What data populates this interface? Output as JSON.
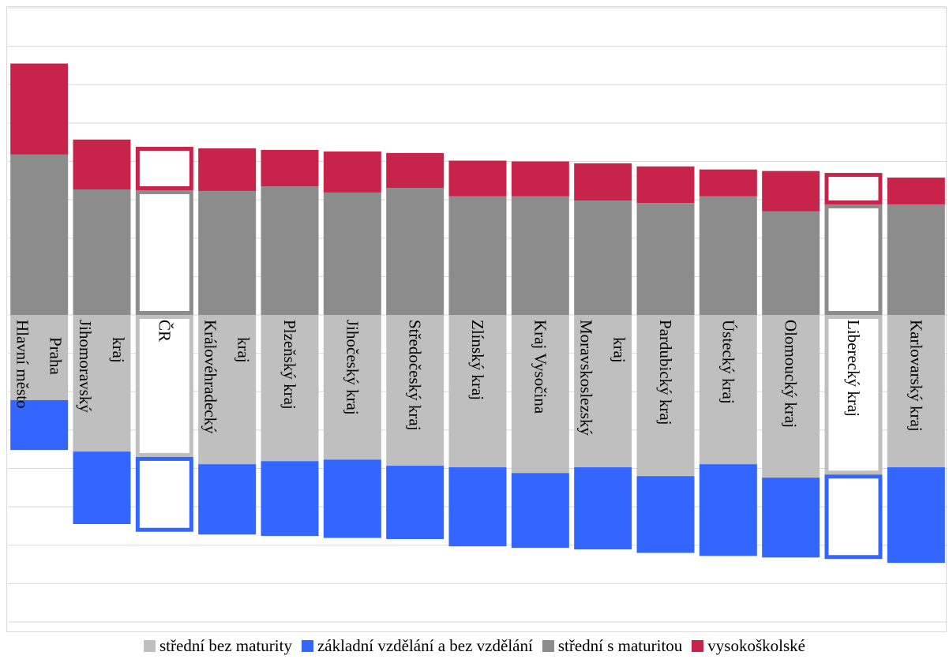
{
  "chart_data": {
    "type": "diverging-stacked-bar",
    "categories": [
      "Hlavní město\nPraha",
      "Jihomoravský\nkraj",
      "ČR",
      "Královéhradecký\nkraj",
      "Plzeňský kraj",
      "Jihočeský kraj",
      "Středočeský kraj",
      "Zlínský kraj",
      "Kraj Vysočina",
      "Moravskoslezský\nkraj",
      "Pardubický kraj",
      "Ústecký kraj",
      "Olomoucký kraj",
      "Liberecký kraj",
      "Karlovarský kraj"
    ],
    "series": [
      {
        "name": "střední bez maturity",
        "color": "#bfbfbf",
        "values": [
          -22.2,
          -35.6,
          -37.0,
          -38.9,
          -38.1,
          -37.7,
          -39.3,
          -39.7,
          -41.2,
          -39.7,
          -42.0,
          -38.9,
          -42.4,
          -41.6,
          -39.7
        ]
      },
      {
        "name": "základní vzdělání a bez vzdělání",
        "color": "#3366ff",
        "values": [
          -13.0,
          -18.9,
          -19.5,
          -18.3,
          -19.5,
          -20.4,
          -19.1,
          -20.6,
          -19.5,
          -21.4,
          -20.0,
          -23.9,
          -20.8,
          -22.0,
          -24.9
        ]
      },
      {
        "name": "střední s maturitou",
        "color": "#8c8c8c",
        "values": [
          41.8,
          32.7,
          32.5,
          32.3,
          33.5,
          31.9,
          33.1,
          30.9,
          30.9,
          29.8,
          29.2,
          30.9,
          27.0,
          28.8,
          28.8
        ]
      },
      {
        "name": "vysokoškolské",
        "color": "#c8234a",
        "values": [
          23.7,
          13.0,
          11.3,
          11.1,
          9.5,
          10.7,
          9.1,
          9.3,
          9.1,
          9.7,
          9.5,
          7.0,
          10.5,
          8.2,
          7.0
        ]
      }
    ],
    "outlined_categories": [
      2,
      13
    ],
    "ylim": [
      -80,
      80
    ],
    "yticks": [
      -80,
      -70,
      -60,
      -50,
      -40,
      -30,
      -20,
      -10,
      0,
      10,
      20,
      30,
      40,
      50,
      60,
      70,
      80
    ],
    "grid": true
  }
}
